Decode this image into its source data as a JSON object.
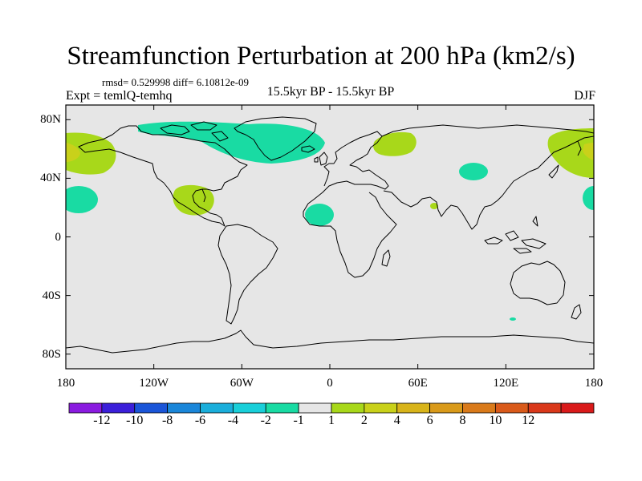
{
  "title": "Streamfunction Perturbation at 200 hPa (km2/s)",
  "stats_text": "rmsd= 0.529998 diff= 6.10812e-09",
  "left_string": "Expt = temlQ-temhq",
  "center_string": "15.5kyr BP - 15.5kyr BP",
  "right_string": "DJF",
  "y_ticks": [
    {
      "value": 80,
      "label": "80N"
    },
    {
      "value": 40,
      "label": "40N"
    },
    {
      "value": 0,
      "label": "0"
    },
    {
      "value": -40,
      "label": "40S"
    },
    {
      "value": -80,
      "label": "80S"
    }
  ],
  "x_ticks": [
    {
      "value": -180,
      "label": "180"
    },
    {
      "value": -120,
      "label": "120W"
    },
    {
      "value": -60,
      "label": "60W"
    },
    {
      "value": 0,
      "label": "0"
    },
    {
      "value": 60,
      "label": "60E"
    },
    {
      "value": 120,
      "label": "120E"
    },
    {
      "value": 180,
      "label": "180"
    }
  ],
  "colorbar": {
    "colors": [
      "#8a1be0",
      "#3b1fd9",
      "#1a55d8",
      "#1a86d9",
      "#1aaedb",
      "#19cfd9",
      "#19dba3",
      "#e6e6e6",
      "#a8d81a",
      "#c9d11a",
      "#d8b41a",
      "#d99a1a",
      "#d97a1a",
      "#d95a1a",
      "#d9381a",
      "#d91a1a"
    ],
    "labels": [
      "-12",
      "-10",
      "-8",
      "-6",
      "-4",
      "-2",
      "-1",
      "1",
      "2",
      "4",
      "6",
      "8",
      "10",
      "12"
    ]
  },
  "colors": {
    "background_field": "#e6e6e6",
    "negative_fill": "#19dba3",
    "positive_fill": "#a8d81a",
    "positive_strong_fill": "#c9d11a",
    "coastline": "#000000"
  },
  "anomaly_regions": [
    {
      "level": "negative",
      "region": "Greenland / Arctic Canada"
    },
    {
      "level": "positive",
      "region": "Northeast Pacific"
    },
    {
      "level": "negative",
      "region": "Subtropical central Pacific"
    },
    {
      "level": "positive",
      "region": "Gulf of Mexico"
    },
    {
      "level": "negative",
      "region": "West Africa"
    },
    {
      "level": "positive",
      "region": "Eastern Europe"
    },
    {
      "level": "negative",
      "region": "Central Asia"
    },
    {
      "level": "positive",
      "region": "Northwest Pacific"
    },
    {
      "level": "negative",
      "region": "Subtropical western Pacific"
    }
  ]
}
